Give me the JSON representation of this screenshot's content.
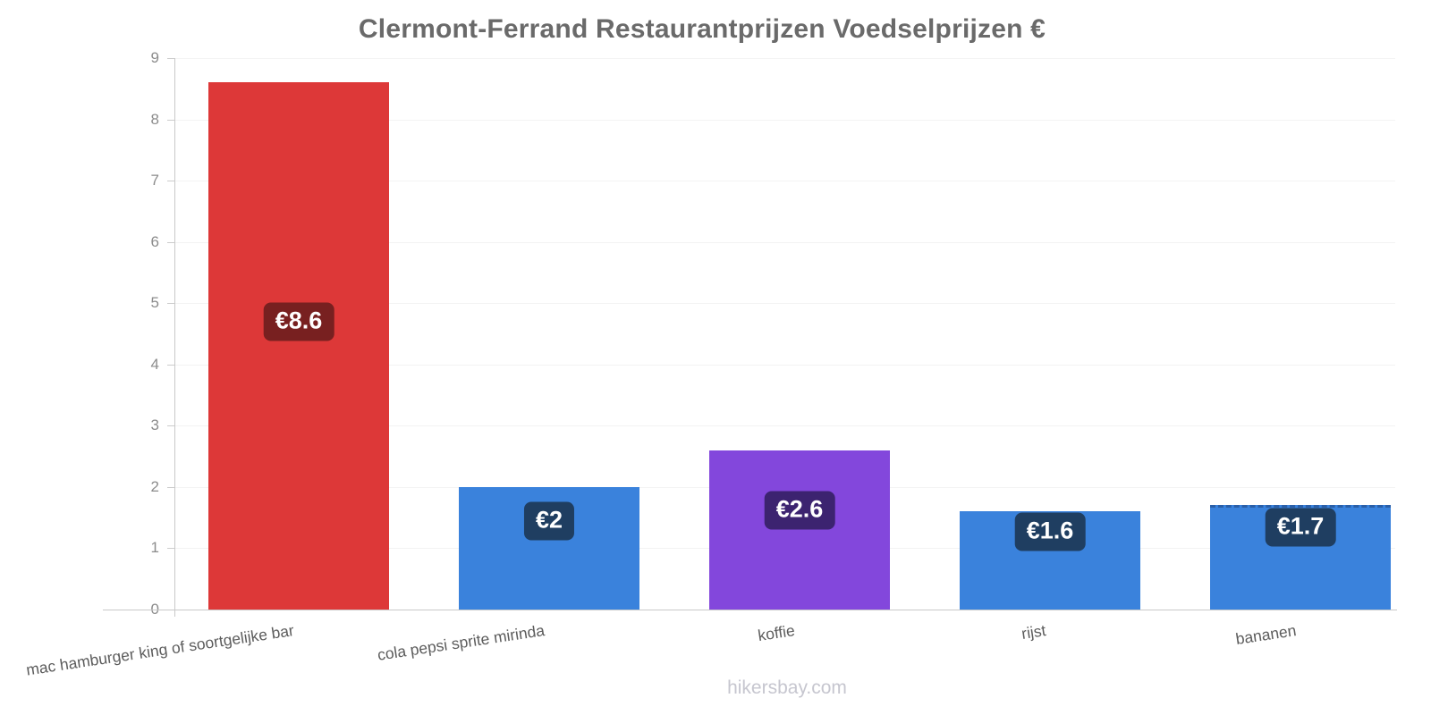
{
  "title": "Clermont-Ferrand Restaurantprijzen Voedselprijzen €",
  "footer": "hikersbay.com",
  "chart_data": {
    "type": "bar",
    "title": "Clermont-Ferrand Restaurantprijzen Voedselprijzen €",
    "categories": [
      "mac hamburger king of soortgelijke bar",
      "cola pepsi sprite mirinda",
      "koffie",
      "rijst",
      "bananen"
    ],
    "values": [
      8.6,
      2,
      2.6,
      1.6,
      1.7
    ],
    "value_labels": [
      "€8.6",
      "€2",
      "€2.6",
      "€1.6",
      "€1.7"
    ],
    "bar_colors": [
      "#dd3838",
      "#3a82dc",
      "#8347dc",
      "#3a82dc",
      "#3a82dc"
    ],
    "value_label_bg_colors": [
      "#782020",
      "#1f3e61",
      "#3c2370",
      "#1f3e61",
      "#1f3e61"
    ],
    "dashed_top": [
      false,
      false,
      false,
      false,
      true
    ],
    "dashed_top_color": "#2a5fa8",
    "currency": "€",
    "xlabel": "",
    "ylabel": "",
    "ylim": [
      0,
      9
    ],
    "yticks": [
      0,
      1,
      2,
      3,
      4,
      5,
      6,
      7,
      8,
      9
    ],
    "grid": "horizontal-faint",
    "legend": "none",
    "watermark": "hikersbay.com"
  }
}
